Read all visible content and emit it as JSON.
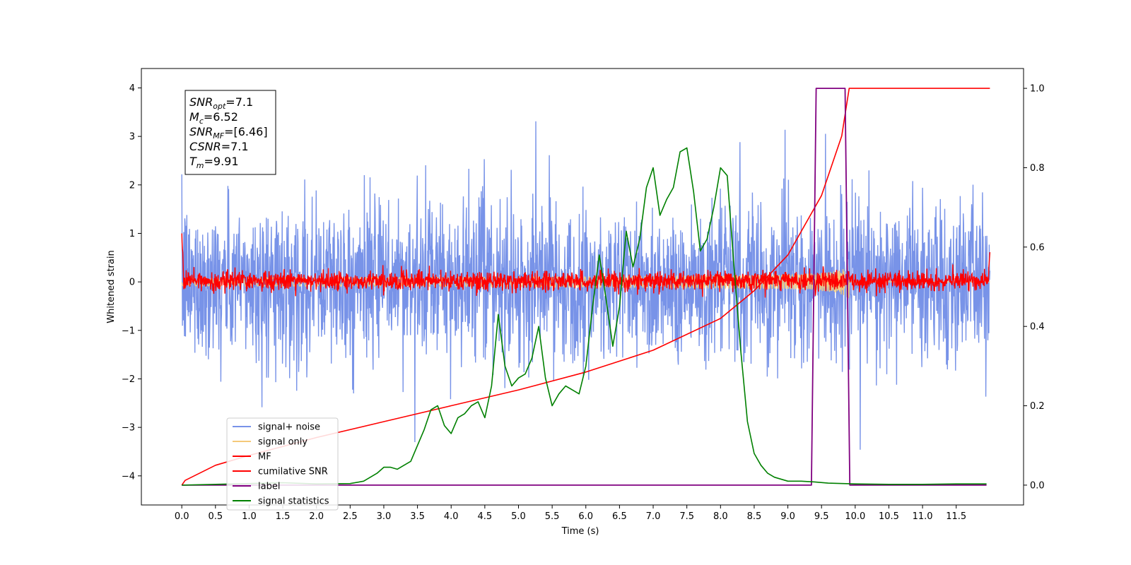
{
  "chart_data": {
    "type": "line",
    "title": "",
    "xlabel": "Time (s)",
    "ylabel": "Whitened strain",
    "y2label": "",
    "xlim": [
      -0.6,
      12.5
    ],
    "ylim": [
      -4.6,
      4.4
    ],
    "y2lim": [
      -0.05,
      1.05
    ],
    "x_ticks": [
      0.0,
      0.5,
      1.0,
      1.5,
      2.0,
      2.5,
      3.0,
      3.5,
      4.0,
      4.5,
      5.0,
      5.5,
      6.0,
      6.5,
      7.0,
      7.5,
      8.0,
      8.5,
      9.0,
      9.5,
      10.0,
      10.5,
      11.0,
      11.5
    ],
    "x_tick_labels": [
      "0.0",
      "0.5",
      "1.0",
      "1.5",
      "2.0",
      "2.5",
      "3.0",
      "3.5",
      "4.0",
      "4.5",
      "5.0",
      "5.5",
      "6.0",
      "6.5",
      "7.0",
      "7.5",
      "8.0",
      "8.5",
      "9.0",
      "9.5",
      "10.0",
      "10.5",
      "11.0",
      "11.5"
    ],
    "y_ticks": [
      -4,
      -3,
      -2,
      -1,
      0,
      1,
      2,
      3,
      4
    ],
    "y_tick_labels": [
      "−4",
      "−3",
      "−2",
      "−1",
      "0",
      "1",
      "2",
      "3",
      "4"
    ],
    "y2_ticks": [
      0.0,
      0.2,
      0.4,
      0.6,
      0.8,
      1.0
    ],
    "y2_tick_labels": [
      "0.0",
      "0.2",
      "0.4",
      "0.6",
      "0.8",
      "1.0"
    ],
    "grid": false,
    "legend_position": "lower-left",
    "annotation": {
      "lines": [
        {
          "name": "SNR",
          "sub": "opt",
          "value": "=7.1"
        },
        {
          "name": "M",
          "sub": "c",
          "value": "=6.52"
        },
        {
          "name": "SNR",
          "sub": "MF",
          "value": "=[6.46]"
        },
        {
          "name": "CSNR",
          "sub": "",
          "value": "=7.1"
        },
        {
          "name": "T",
          "sub": "m",
          "value": "=9.91"
        }
      ]
    },
    "series": [
      {
        "name": "signal+ noise",
        "axis": "left",
        "color": "#7893e8",
        "x_range": [
          0.0,
          12.0
        ],
        "noise_sigma": 0.8,
        "noise_peak_low": -4.15,
        "noise_peak_high": 4.0,
        "representation": "dense noise"
      },
      {
        "name": "signal only",
        "axis": "left",
        "color": "#f5c97a",
        "x_range": [
          0.0,
          12.0
        ],
        "chirp_peak_time": 9.91,
        "chirp_peak_amplitude": 0.4
      },
      {
        "name": "MF",
        "axis": "left",
        "color": "#ff0000",
        "x_range": [
          0.0,
          12.0
        ],
        "noise_sigma": 0.1,
        "start_value": 1.0,
        "end_value": 0.75,
        "representation": "dense noise"
      },
      {
        "name": "cumilative SNR",
        "axis": "right",
        "color": "#ff0000",
        "x": [
          0.0,
          0.05,
          0.5,
          1.0,
          2.0,
          3.0,
          4.0,
          5.0,
          6.0,
          7.0,
          8.0,
          8.5,
          9.0,
          9.5,
          9.8,
          9.91,
          10.5,
          11.0,
          11.5,
          12.0
        ],
        "y": [
          0.0,
          0.012,
          0.05,
          0.075,
          0.12,
          0.16,
          0.2,
          0.24,
          0.285,
          0.34,
          0.42,
          0.49,
          0.58,
          0.73,
          0.88,
          1.0,
          1.0,
          1.0,
          1.0,
          1.0
        ]
      },
      {
        "name": "label",
        "axis": "right",
        "color": "#800080",
        "x": [
          0.0,
          9.35,
          9.42,
          9.85,
          9.92,
          11.95
        ],
        "y": [
          0.0,
          0.0,
          1.0,
          1.0,
          0.0,
          0.0
        ]
      },
      {
        "name": "signal statistics",
        "axis": "right",
        "color": "#008000",
        "x": [
          0.0,
          0.5,
          1.0,
          1.5,
          2.0,
          2.5,
          2.7,
          2.9,
          3.0,
          3.1,
          3.2,
          3.3,
          3.4,
          3.5,
          3.6,
          3.7,
          3.8,
          3.9,
          4.0,
          4.1,
          4.2,
          4.3,
          4.4,
          4.5,
          4.6,
          4.7,
          4.8,
          4.9,
          5.0,
          5.1,
          5.2,
          5.3,
          5.4,
          5.5,
          5.6,
          5.7,
          5.8,
          5.9,
          6.0,
          6.1,
          6.2,
          6.3,
          6.4,
          6.5,
          6.6,
          6.7,
          6.8,
          6.9,
          7.0,
          7.1,
          7.2,
          7.3,
          7.4,
          7.5,
          7.6,
          7.7,
          7.8,
          7.9,
          8.0,
          8.1,
          8.2,
          8.3,
          8.4,
          8.5,
          8.6,
          8.7,
          8.8,
          9.0,
          9.2,
          9.4,
          9.6,
          10.0,
          10.5,
          11.0,
          11.5,
          11.95
        ],
        "y": [
          0.0,
          0.002,
          0.004,
          0.006,
          0.003,
          0.004,
          0.01,
          0.03,
          0.045,
          0.045,
          0.04,
          0.05,
          0.06,
          0.1,
          0.14,
          0.19,
          0.2,
          0.15,
          0.13,
          0.17,
          0.18,
          0.2,
          0.21,
          0.17,
          0.25,
          0.43,
          0.3,
          0.25,
          0.27,
          0.28,
          0.32,
          0.4,
          0.27,
          0.2,
          0.23,
          0.25,
          0.24,
          0.23,
          0.3,
          0.45,
          0.58,
          0.47,
          0.35,
          0.45,
          0.64,
          0.55,
          0.62,
          0.75,
          0.8,
          0.68,
          0.72,
          0.75,
          0.84,
          0.85,
          0.74,
          0.59,
          0.62,
          0.7,
          0.8,
          0.78,
          0.55,
          0.34,
          0.16,
          0.08,
          0.05,
          0.03,
          0.02,
          0.01,
          0.01,
          0.008,
          0.005,
          0.003,
          0.002,
          0.002,
          0.003,
          0.003
        ]
      }
    ],
    "legend": [
      {
        "label": "signal+ noise",
        "color": "#7893e8"
      },
      {
        "label": "signal only",
        "color": "#f5c97a"
      },
      {
        "label": "MF",
        "color": "#ff0000"
      },
      {
        "label": "cumilative SNR",
        "color": "#ff0000"
      },
      {
        "label": "label",
        "color": "#800080"
      },
      {
        "label": "signal statistics",
        "color": "#008000"
      }
    ]
  }
}
